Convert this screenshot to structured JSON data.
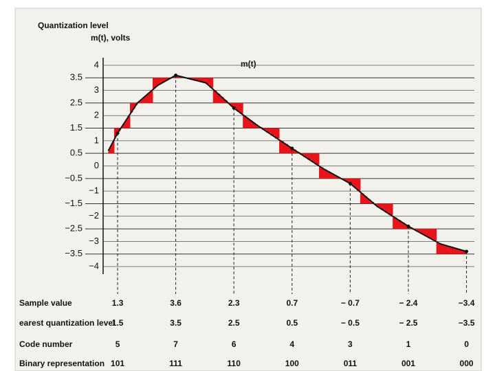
{
  "chart_data": {
    "type": "line",
    "level_axis_label": "Quantization level",
    "ylabel": "m(t), volts",
    "curve_label": "m(t)",
    "color": "#111111",
    "quantization_color": "#e8141c",
    "x": [
      0.84,
      1,
      1.34,
      1.69,
      2,
      2.52,
      3,
      3.41,
      4,
      4.53,
      5,
      5.46,
      6,
      6.55,
      7
    ],
    "values": [
      0.6,
      1.3,
      2.5,
      3.2,
      3.6,
      3.3,
      2.3,
      1.6,
      0.7,
      -0.1,
      -0.7,
      -1.6,
      -2.4,
      -3.1,
      -3.4
    ],
    "xlim": [
      0.834,
      7.1
    ],
    "ylim": [
      -4.3,
      4.3
    ],
    "yticks": [
      4,
      3,
      2,
      1,
      0,
      {
        "value": -1,
        "label": "−1"
      },
      {
        "value": -2,
        "label": "−2"
      },
      {
        "value": -3,
        "label": "−3"
      },
      {
        "value": -4,
        "label": "−4"
      }
    ],
    "level_ticks": [
      3.5,
      2.5,
      1.5,
      0.5,
      {
        "value": -0.5,
        "label": "−0.5"
      },
      {
        "value": -1.5,
        "label": "−1.5"
      },
      {
        "value": -2.5,
        "label": "−2.5"
      },
      {
        "value": -3.5,
        "label": "−3.5"
      }
    ],
    "samples": {
      "x": [
        1,
        2,
        3,
        4,
        5,
        6,
        7
      ],
      "values": [
        1.3,
        3.6,
        2.3,
        0.7,
        -0.7,
        -2.4,
        -3.4
      ],
      "value_labels": [
        "1.3",
        "3.6",
        "2.3",
        "0.7",
        "− 0.7",
        "− 2.4",
        "−3.4"
      ]
    },
    "nearest_levels": {
      "values": [
        1.5,
        3.5,
        2.5,
        0.5,
        -0.5,
        -2.5,
        -3.5
      ],
      "value_labels": [
        "1.5",
        "3.5",
        "2.5",
        "0.5",
        "− 0.5",
        "− 2.5",
        "−3.5"
      ]
    },
    "code_numbers": [
      5,
      7,
      6,
      4,
      3,
      1,
      0
    ],
    "binary": [
      "101",
      "111",
      "110",
      "100",
      "011",
      "001",
      "000"
    ],
    "row_labels": [
      "Sample value",
      "earest quantization level",
      "Code number",
      "Binary representation"
    ]
  }
}
